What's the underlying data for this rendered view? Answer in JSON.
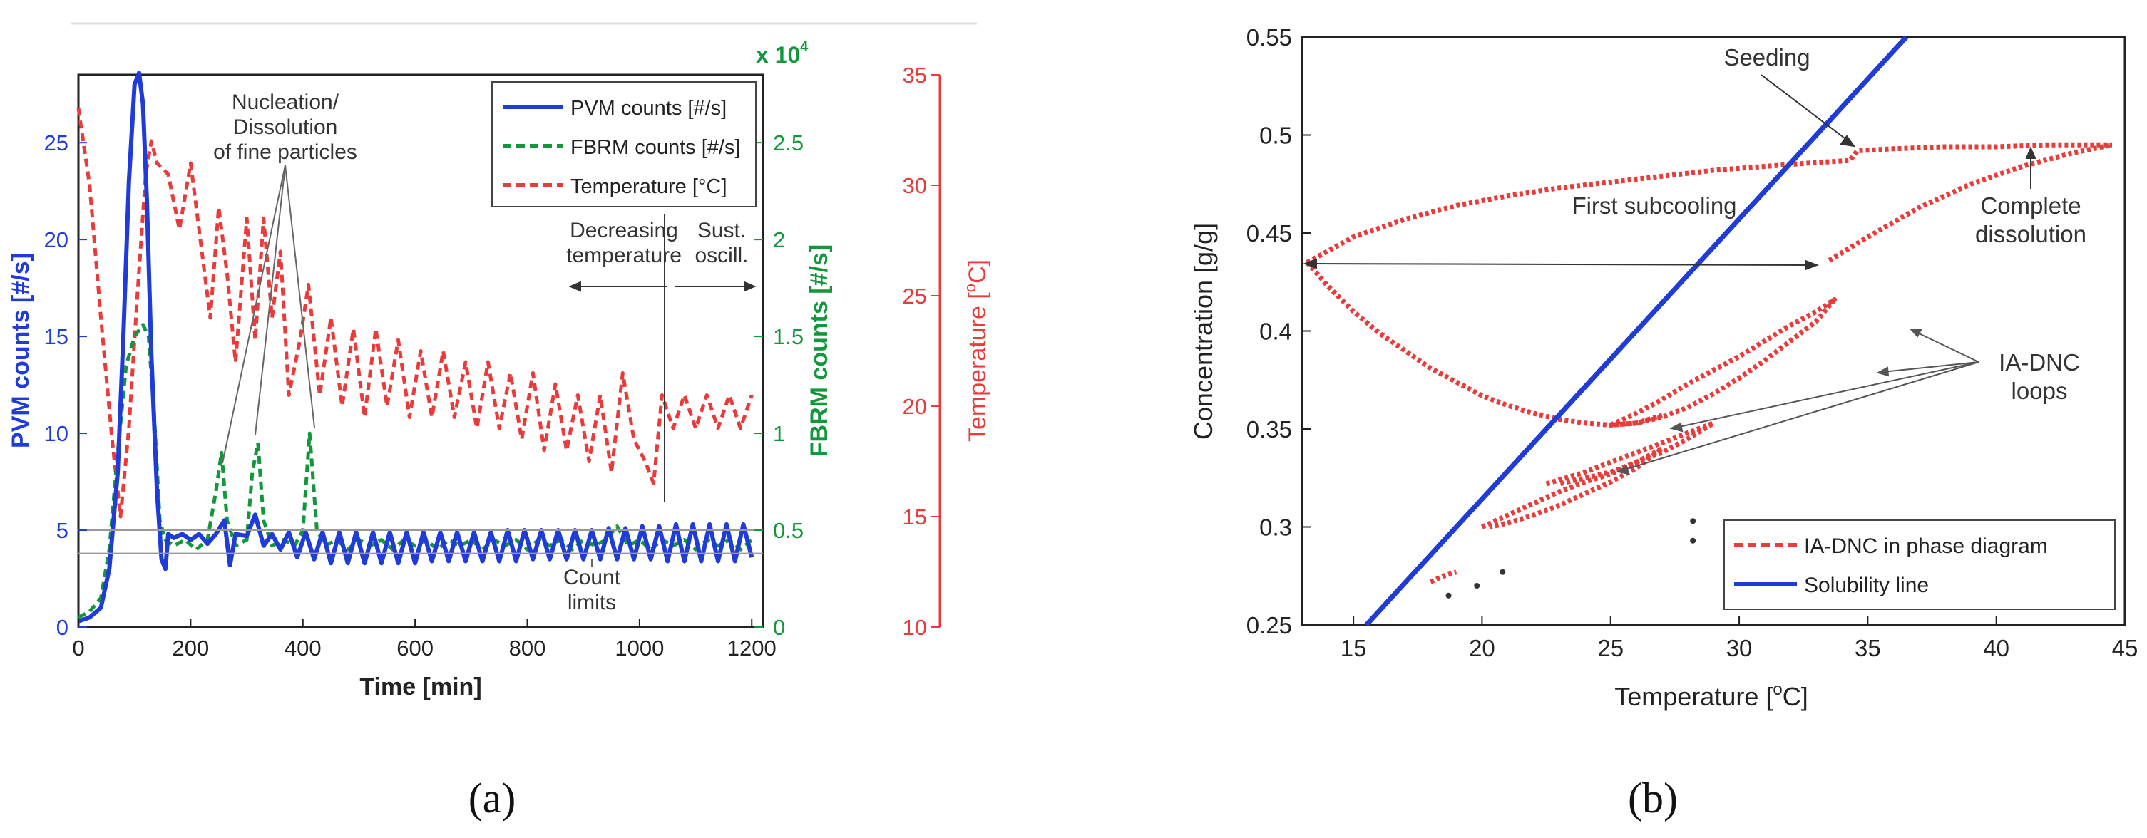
{
  "chart_data": [
    {
      "id": "a",
      "type": "line",
      "caption": "(a)",
      "xlabel": "Time [min]",
      "xlim": [
        0,
        1220
      ],
      "xticks": [
        0,
        200,
        400,
        600,
        800,
        1000,
        1200
      ],
      "axes": {
        "pvm": {
          "label": "PVM counts [#/s]",
          "lim": [
            0,
            28.5
          ],
          "ticks": [
            0,
            5,
            10,
            15,
            20,
            25
          ],
          "color": "#1f3bd8"
        },
        "fbrm": {
          "label": "FBRM counts [#/s]",
          "lim": [
            0,
            2.85
          ],
          "ticks": [
            0,
            0.5,
            1,
            1.5,
            2,
            2.5
          ],
          "tick_labels": [
            "0",
            "0.5",
            "1",
            "1.5",
            "2",
            "2.5"
          ],
          "multiplier": "x 10",
          "multiplier_exp": "4",
          "color": "#13973a"
        },
        "temp": {
          "label_main": "Temperature [",
          "label_sup": "o",
          "label_end": "C]",
          "lim": [
            10,
            35
          ],
          "ticks": [
            10,
            15,
            20,
            25,
            30,
            35
          ],
          "color": "#ea3b3b"
        }
      },
      "legend": {
        "position": "top-right",
        "entries": [
          {
            "label": "PVM counts [#/s]",
            "color": "#1f3bd8",
            "style": "solid"
          },
          {
            "label": "FBRM counts [#/s]",
            "color": "#13973a",
            "style": "dashed"
          },
          {
            "label": "Temperature [°C]",
            "color": "#ea3b3b",
            "style": "dashed"
          }
        ]
      },
      "annotations": {
        "nucleation": [
          "Nucleation/",
          "Dissolution",
          "of fine particles"
        ],
        "decreasing": [
          "Decreasing",
          "temperature"
        ],
        "sustained": [
          "Sust.",
          "oscill."
        ],
        "count_limits": [
          "Count",
          "limits"
        ]
      },
      "count_limits": [
        5,
        3.8
      ],
      "series": [
        {
          "name": "Temperature",
          "axis": "temp",
          "color": "#ea3b3b",
          "style": "dashed",
          "x": [
            0,
            20,
            40,
            60,
            75,
            90,
            105,
            120,
            130,
            140,
            160,
            180,
            200,
            220,
            235,
            250,
            265,
            280,
            300,
            315,
            330,
            345,
            360,
            375,
            395,
            410,
            430,
            450,
            470,
            490,
            510,
            530,
            550,
            570,
            590,
            610,
            630,
            650,
            670,
            690,
            710,
            730,
            750,
            770,
            790,
            810,
            830,
            850,
            870,
            890,
            910,
            930,
            950,
            970,
            990,
            1010,
            1025,
            1040,
            1060,
            1080,
            1100,
            1120,
            1140,
            1160,
            1180,
            1200
          ],
          "y": [
            33.5,
            30,
            24,
            18.5,
            15,
            19,
            25,
            30.5,
            32,
            31,
            30.5,
            28,
            31,
            27,
            24,
            29,
            26,
            22,
            28.5,
            23,
            28.5,
            24,
            27,
            20.5,
            23,
            25.5,
            20.5,
            24,
            20,
            23.5,
            19.5,
            23.5,
            20,
            23,
            19.5,
            22.5,
            19.5,
            22.5,
            19.5,
            22,
            19,
            22,
            19,
            21.5,
            18.5,
            21.5,
            18,
            21,
            18,
            20.5,
            17.5,
            20.5,
            17,
            21.5,
            18.5,
            17.5,
            16.5,
            20.5,
            19,
            20.5,
            19,
            20.5,
            19,
            20.5,
            19,
            20.5
          ]
        },
        {
          "name": "FBRM",
          "axis": "fbrm",
          "color": "#13973a",
          "style": "dashed",
          "x": [
            0,
            20,
            40,
            55,
            70,
            85,
            100,
            115,
            125,
            135,
            145,
            155,
            170,
            190,
            210,
            230,
            245,
            255,
            265,
            280,
            300,
            310,
            320,
            330,
            345,
            365,
            385,
            400,
            412,
            425,
            440,
            460,
            480,
            500,
            520,
            540,
            560,
            580,
            600,
            620,
            640,
            660,
            680,
            700,
            720,
            740,
            760,
            780,
            800,
            820,
            840,
            860,
            880,
            900,
            920,
            940,
            960,
            980,
            1000,
            1020,
            1040,
            1060,
            1080,
            1100,
            1120,
            1140,
            1160,
            1180,
            1200
          ],
          "y": [
            0.05,
            0.08,
            0.15,
            0.4,
            0.9,
            1.35,
            1.5,
            1.56,
            1.5,
            1.1,
            0.55,
            0.45,
            0.42,
            0.45,
            0.4,
            0.45,
            0.7,
            0.9,
            0.55,
            0.42,
            0.45,
            0.8,
            0.95,
            0.55,
            0.42,
            0.45,
            0.42,
            0.5,
            1.0,
            0.5,
            0.42,
            0.45,
            0.4,
            0.45,
            0.42,
            0.45,
            0.4,
            0.45,
            0.42,
            0.45,
            0.4,
            0.45,
            0.42,
            0.45,
            0.4,
            0.45,
            0.42,
            0.45,
            0.4,
            0.45,
            0.42,
            0.45,
            0.4,
            0.45,
            0.42,
            0.45,
            0.52,
            0.42,
            0.45,
            0.4,
            0.45,
            0.42,
            0.45,
            0.4,
            0.45,
            0.42,
            0.45,
            0.4,
            0.45
          ]
        },
        {
          "name": "PVM",
          "axis": "pvm",
          "color": "#1f3bd8",
          "style": "solid",
          "x": [
            0,
            20,
            40,
            55,
            70,
            80,
            90,
            100,
            108,
            115,
            122,
            130,
            140,
            148,
            155,
            160,
            170,
            185,
            200,
            215,
            230,
            245,
            260,
            270,
            280,
            300,
            315,
            330,
            345,
            360,
            375,
            390,
            405,
            420,
            435,
            450,
            465,
            480,
            495,
            510,
            525,
            540,
            555,
            570,
            585,
            600,
            615,
            630,
            645,
            660,
            675,
            690,
            705,
            720,
            735,
            750,
            765,
            780,
            795,
            810,
            825,
            840,
            855,
            870,
            885,
            900,
            915,
            930,
            945,
            960,
            975,
            990,
            1005,
            1020,
            1035,
            1050,
            1065,
            1080,
            1095,
            1110,
            1125,
            1140,
            1155,
            1170,
            1185,
            1200
          ],
          "y": [
            0.3,
            0.5,
            1,
            3,
            8,
            15,
            23,
            28,
            28.6,
            27,
            22,
            14,
            7,
            3.5,
            3,
            4.8,
            4.6,
            4.8,
            4.5,
            4.8,
            4.3,
            4.8,
            5.5,
            3.2,
            4.8,
            4.7,
            5.8,
            4.2,
            4.8,
            4.0,
            4.9,
            3.6,
            4.9,
            3.5,
            4.9,
            3.3,
            4.9,
            3.3,
            4.9,
            3.3,
            4.9,
            3.3,
            4.9,
            3.3,
            4.9,
            3.3,
            4.9,
            3.4,
            4.9,
            3.4,
            4.9,
            3.4,
            4.9,
            3.4,
            4.9,
            3.4,
            5.0,
            3.4,
            5.0,
            3.5,
            5.0,
            3.5,
            5.0,
            3.5,
            5.0,
            3.5,
            5.0,
            3.5,
            5.1,
            3.5,
            5.1,
            3.5,
            5.2,
            3.5,
            5.2,
            3.4,
            5.3,
            3.4,
            5.3,
            3.4,
            5.3,
            3.4,
            5.3,
            3.4,
            5.3,
            3.6
          ]
        }
      ]
    },
    {
      "id": "b",
      "type": "scatter",
      "caption": "(b)",
      "xlabel_main": "Temperature [",
      "xlabel_sup": "o",
      "xlabel_end": "C]",
      "ylabel": "Concentration [g/g]",
      "xlim": [
        13,
        45
      ],
      "ylim": [
        0.25,
        0.55
      ],
      "xticks": [
        15,
        20,
        25,
        30,
        35,
        40,
        45
      ],
      "yticks": [
        0.25,
        0.3,
        0.35,
        0.4,
        0.45,
        0.5,
        0.55
      ],
      "ytick_labels": [
        "0.25",
        "0.3",
        "0.35",
        "0.4",
        "0.45",
        "0.5",
        "0.55"
      ],
      "legend": {
        "position": "bottom-right",
        "entries": [
          {
            "label": "IA-DNC in phase diagram",
            "color": "#ea3b3b",
            "style": "dashed"
          },
          {
            "label": "Solubility line",
            "color": "#1f3bd8",
            "style": "solid"
          }
        ]
      },
      "annotations": {
        "seeding": "Seeding",
        "first_subcooling": "First subcooling",
        "complete_dissolution": [
          "Complete",
          "dissolution"
        ],
        "loops": [
          "IA-DNC",
          "loops"
        ]
      },
      "solubility_line": {
        "x": [
          15.5,
          36.5
        ],
        "y": [
          0.25,
          0.55
        ]
      },
      "series": [
        {
          "name": "upper branch",
          "x": [
            13.2,
            15,
            17,
            19,
            21,
            23,
            25,
            27,
            29,
            31,
            33,
            34.3,
            34.6,
            36,
            38,
            40,
            42,
            44.5
          ],
          "y": [
            0.435,
            0.448,
            0.457,
            0.464,
            0.469,
            0.473,
            0.476,
            0.479,
            0.482,
            0.484,
            0.486,
            0.487,
            0.492,
            0.493,
            0.494,
            0.494,
            0.495,
            0.495
          ]
        },
        {
          "name": "complete dissolution branch",
          "x": [
            33.5,
            35,
            37,
            39,
            41,
            43,
            44.5
          ],
          "y": [
            0.436,
            0.448,
            0.463,
            0.475,
            0.484,
            0.491,
            0.495
          ]
        },
        {
          "name": "lower branch",
          "x": [
            13.2,
            14,
            15,
            16,
            17,
            18,
            19,
            20,
            21,
            22,
            23,
            24,
            25,
            26,
            27
          ],
          "y": [
            0.435,
            0.423,
            0.41,
            0.399,
            0.39,
            0.381,
            0.374,
            0.367,
            0.362,
            0.358,
            0.355,
            0.353,
            0.352,
            0.353,
            0.357
          ]
        },
        {
          "name": "loop 1",
          "x": [
            25,
            26,
            27,
            28,
            29,
            30,
            31,
            32,
            33,
            33.7,
            33,
            32,
            31,
            30,
            29,
            28,
            27,
            26,
            25
          ],
          "y": [
            0.352,
            0.358,
            0.365,
            0.373,
            0.38,
            0.387,
            0.395,
            0.403,
            0.41,
            0.416,
            0.405,
            0.395,
            0.385,
            0.376,
            0.368,
            0.361,
            0.356,
            0.353,
            0.352
          ]
        },
        {
          "name": "loop 2",
          "x": [
            22.5,
            24,
            25,
            26,
            27,
            28,
            29,
            28,
            27,
            26,
            25,
            24,
            23
          ],
          "y": [
            0.322,
            0.328,
            0.333,
            0.338,
            0.343,
            0.348,
            0.353,
            0.345,
            0.338,
            0.333,
            0.328,
            0.325,
            0.322
          ]
        },
        {
          "name": "loop 3",
          "x": [
            20,
            21,
            22,
            23,
            24,
            25,
            26,
            27,
            26,
            25,
            24,
            23,
            22,
            21,
            20.3
          ],
          "y": [
            0.3,
            0.306,
            0.312,
            0.318,
            0.323,
            0.327,
            0.333,
            0.34,
            0.33,
            0.323,
            0.317,
            0.311,
            0.306,
            0.302,
            0.3
          ]
        },
        {
          "name": "low segment",
          "x": [
            18,
            18.5,
            19
          ],
          "y": [
            0.272,
            0.275,
            0.277
          ]
        },
        {
          "name": "dots",
          "style": "points",
          "x": [
            18.7,
            19.8,
            20.8,
            28.2,
            28.2
          ],
          "y": [
            0.265,
            0.27,
            0.277,
            0.303,
            0.293
          ]
        }
      ]
    }
  ]
}
